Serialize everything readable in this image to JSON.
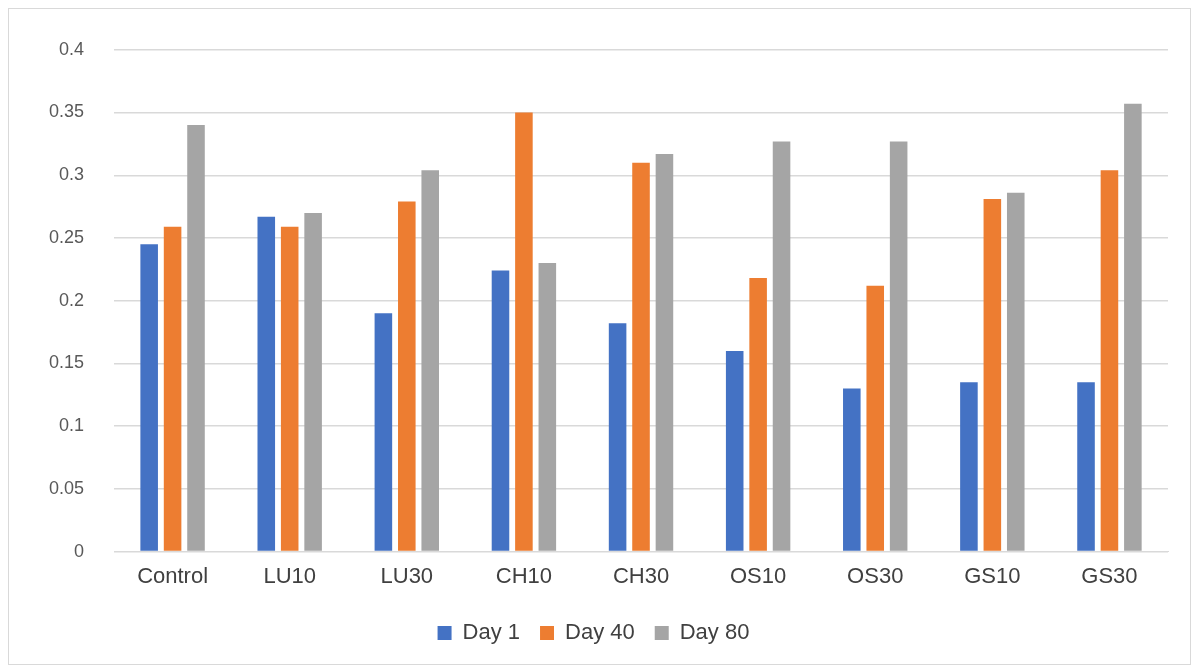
{
  "chart_data": {
    "type": "bar",
    "categories": [
      "Control",
      "LU10",
      "LU30",
      "CH10",
      "CH30",
      "OS10",
      "OS30",
      "GS10",
      "GS30"
    ],
    "series": [
      {
        "name": "Day 1",
        "color": "#4472c4",
        "values": [
          0.245,
          0.267,
          0.19,
          0.224,
          0.182,
          0.16,
          0.13,
          0.135,
          0.135
        ]
      },
      {
        "name": "Day 40",
        "color": "#ed7d31",
        "values": [
          0.259,
          0.259,
          0.279,
          0.35,
          0.31,
          0.218,
          0.212,
          0.281,
          0.304
        ]
      },
      {
        "name": "Day 80",
        "color": "#a5a5a5",
        "values": [
          0.34,
          0.27,
          0.304,
          0.23,
          0.317,
          0.327,
          0.327,
          0.286,
          0.357
        ]
      }
    ],
    "ylim": [
      0,
      0.4
    ],
    "yticks": [
      0,
      0.05,
      0.1,
      0.15,
      0.2,
      0.25,
      0.3,
      0.35,
      0.4
    ],
    "grid": "y",
    "legend": "bottom"
  }
}
